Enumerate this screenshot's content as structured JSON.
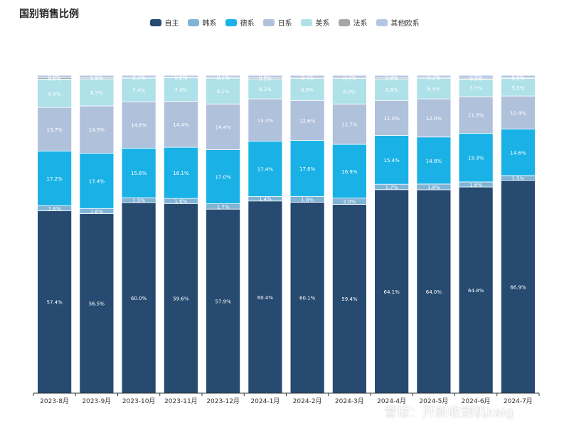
{
  "chart_data": {
    "type": "bar",
    "stacked": true,
    "title": "国别销售比例",
    "legend_position": "top-center",
    "grid": false,
    "ylim": [
      0,
      100
    ],
    "categories": [
      "2023-8月",
      "2023-9月",
      "2023-10月",
      "2023-11月",
      "2023-12月",
      "2024-1月",
      "2024-2月",
      "2024-3月",
      "2024-4月",
      "2024-5月",
      "2024-6月",
      "2024-7月"
    ],
    "series": [
      {
        "name": "自主",
        "color": "#264a70",
        "values": [
          57.4,
          56.5,
          60.0,
          59.6,
          57.9,
          60.4,
          60.1,
          59.4,
          64.1,
          64.0,
          64.8,
          66.9
        ]
      },
      {
        "name": "韩系",
        "color": "#7fb4d6",
        "values": [
          1.6,
          1.6,
          1.5,
          1.6,
          1.7,
          1.4,
          1.8,
          2.0,
          1.7,
          1.8,
          1.6,
          1.5
        ]
      },
      {
        "name": "德系",
        "color": "#1ab2e6",
        "values": [
          17.2,
          17.4,
          15.6,
          16.1,
          17.0,
          17.4,
          17.6,
          16.9,
          15.4,
          14.8,
          15.3,
          14.6
        ]
      },
      {
        "name": "日系",
        "color": "#b0c1dc",
        "values": [
          13.7,
          14.9,
          14.6,
          14.4,
          14.4,
          13.3,
          12.6,
          12.7,
          11.0,
          12.0,
          11.5,
          10.4
        ]
      },
      {
        "name": "美系",
        "color": "#aee1e8",
        "values": [
          8.9,
          8.5,
          7.4,
          7.4,
          8.1,
          6.3,
          6.9,
          8.0,
          6.8,
          6.5,
          5.5,
          5.5
        ]
      },
      {
        "name": "法系",
        "color": "#a6a6a6",
        "values": [
          0.4,
          0.3,
          0.2,
          0.2,
          0.2,
          0.3,
          0.3,
          0.3,
          0.3,
          0.2,
          0.3,
          0.2
        ]
      },
      {
        "name": "其他欧系",
        "color": "#b4c6e4",
        "values": [
          0.8,
          0.8,
          0.7,
          0.6,
          0.7,
          0.8,
          0.7,
          0.7,
          0.8,
          0.7,
          0.9,
          0.8
        ]
      }
    ]
  },
  "watermark": {
    "text": "雪球：开新收割机kaig"
  }
}
